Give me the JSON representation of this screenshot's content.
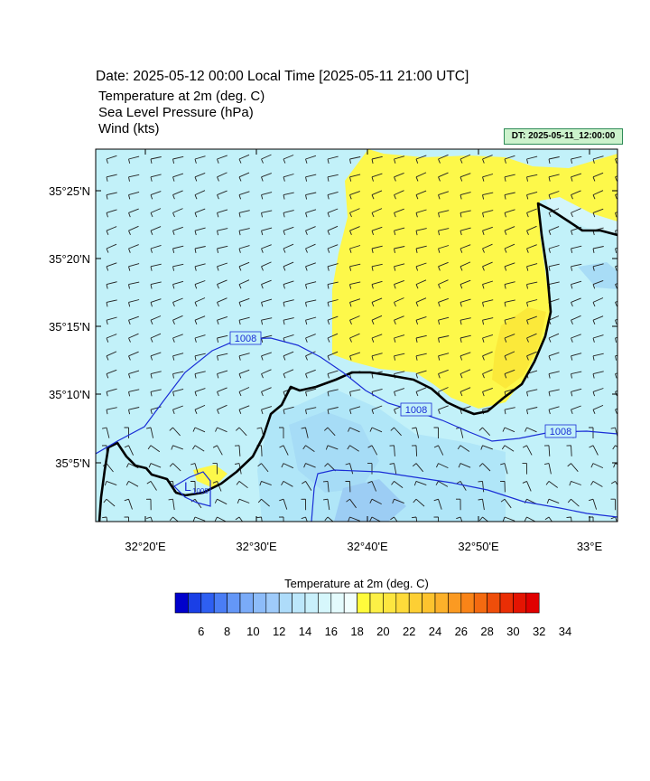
{
  "header": {
    "date_line": "Date: 2025-05-12  00:00 Local Time [2025-05-11  21:00 UTC]",
    "variables": [
      "Temperature at 2m   (deg. C)",
      "Sea Level Pressure   (hPa)",
      "Wind   (kts)"
    ],
    "dt_box": "DT: 2025-05-11_12:00:00"
  },
  "map": {
    "lat_labels": [
      "35°25'N",
      "35°20'N",
      "35°15'N",
      "35°10'N",
      "35°5'N"
    ],
    "lon_labels": [
      "32°20'E",
      "32°30'E",
      "32°40'E",
      "32°50'E",
      "33°E"
    ],
    "isobar_labels": [
      "1008",
      "1008",
      "1008"
    ],
    "low_marker": "L",
    "low_value": "1008"
  },
  "legend": {
    "title": "Temperature at 2m  (deg. C)",
    "tick_labels": [
      "6",
      "8",
      "10",
      "12",
      "14",
      "16",
      "18",
      "20",
      "22",
      "24",
      "26",
      "28",
      "30",
      "32",
      "34"
    ],
    "colors": [
      "#0000cc",
      "#1a3fe6",
      "#2e5ff2",
      "#4a7df5",
      "#6497f7",
      "#7aabf8",
      "#8dbcf9",
      "#9fcbfa",
      "#aedcfa",
      "#bce7fb",
      "#c9f0fb",
      "#d6f7fc",
      "#e4fbfd",
      "#f1fefe",
      "#fffb3b",
      "#fdf046",
      "#fde640",
      "#fedb3a",
      "#fdcf34",
      "#fdc32e",
      "#fcb12a",
      "#fb9a22",
      "#f98418",
      "#f46a10",
      "#ef4e0a",
      "#ea2e05",
      "#e41402",
      "#e00000"
    ]
  }
}
